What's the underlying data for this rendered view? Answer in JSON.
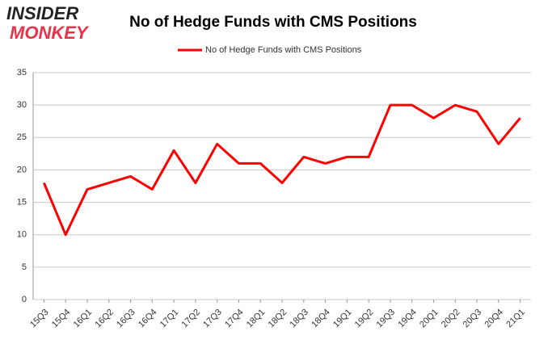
{
  "logo": {
    "line1": "INSIDER",
    "line2": "MONKEY"
  },
  "chart_data": {
    "type": "line",
    "title": "No of Hedge Funds with CMS Positions",
    "categories": [
      "15Q3",
      "15Q4",
      "16Q1",
      "16Q2",
      "16Q3",
      "16Q4",
      "17Q1",
      "17Q2",
      "17Q3",
      "17Q4",
      "18Q1",
      "18Q2",
      "18Q3",
      "18Q4",
      "19Q1",
      "19Q2",
      "19Q3",
      "19Q4",
      "20Q1",
      "20Q2",
      "20Q3",
      "20Q4",
      "21Q1"
    ],
    "series": [
      {
        "name": "No of Hedge Funds with CMS Positions",
        "color": "#ff0000",
        "values": [
          18,
          10,
          17,
          18,
          19,
          17,
          23,
          18,
          24,
          21,
          21,
          18,
          22,
          21,
          22,
          22,
          30,
          30,
          28,
          30,
          29,
          24,
          28
        ]
      }
    ],
    "ylim": [
      0,
      35
    ],
    "yticks": [
      0,
      5,
      10,
      15,
      20,
      25,
      30,
      35
    ],
    "grid": true,
    "legend": "top"
  }
}
